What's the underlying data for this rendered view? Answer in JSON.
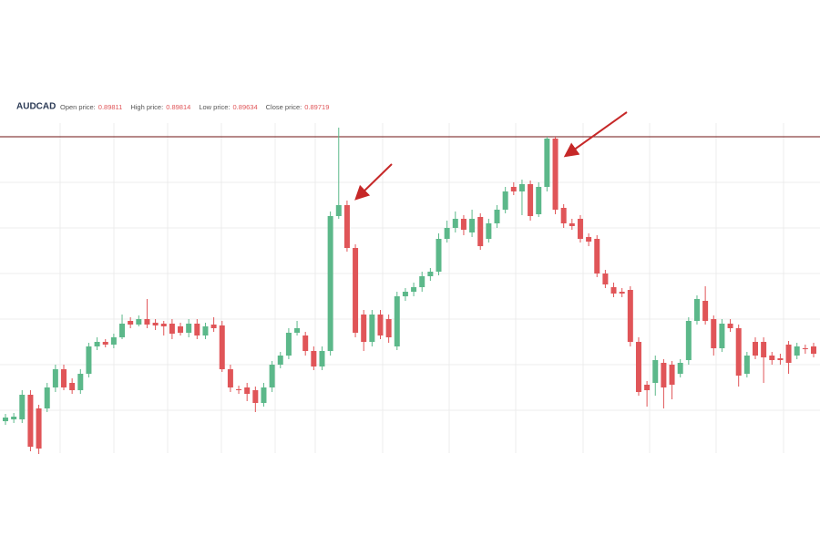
{
  "chart_data": {
    "type": "candlestick",
    "title": "AUDCAD",
    "info": [
      {
        "label": "Open price:",
        "value": 0.89811
      },
      {
        "label": "High price:",
        "value": 0.89814
      },
      {
        "label": "Low price:",
        "value": 0.89634
      },
      {
        "label": "Close price:",
        "value": 0.89719
      }
    ],
    "ylim": [
      0.892,
      0.9
    ],
    "ygrid": [
      0.893,
      0.894,
      0.895,
      0.896,
      0.897,
      0.898
    ],
    "hline": 0.899,
    "hline_color": "#8a4040",
    "up_color": "#5cb88a",
    "down_color": "#e05558",
    "open": [
      0.89276,
      0.8928,
      0.8928,
      0.89334,
      0.89304,
      0.89304,
      0.8935,
      0.8939,
      0.8936,
      0.89344,
      0.8938,
      0.8944,
      0.8945,
      0.89444,
      0.8946,
      0.89496,
      0.89488,
      0.895,
      0.89492,
      0.8949,
      0.8949,
      0.89484,
      0.8947,
      0.8949,
      0.89464,
      0.89488,
      0.89486,
      0.8939,
      0.89346,
      0.8935,
      0.89344,
      0.89316,
      0.8935,
      0.894,
      0.8942,
      0.8947,
      0.89464,
      0.8943,
      0.89396,
      0.8943,
      0.89726,
      0.8975,
      0.89656,
      0.8951,
      0.8945,
      0.8951,
      0.895,
      0.8944,
      0.8955,
      0.8956,
      0.8957,
      0.89594,
      0.89604,
      0.89676,
      0.897,
      0.8972,
      0.8969,
      0.89724,
      0.89676,
      0.8971,
      0.8974,
      0.8979,
      0.8978,
      0.89796,
      0.8973,
      0.8979,
      0.89896,
      0.89744,
      0.8971,
      0.8972,
      0.8968,
      0.89676,
      0.896,
      0.8957,
      0.8956,
      0.89564,
      0.8945,
      0.89356,
      0.8936,
      0.89404,
      0.894,
      0.8938,
      0.8941,
      0.89496,
      0.8954,
      0.895,
      0.89436,
      0.8949,
      0.8948,
      0.8938,
      0.8945,
      0.8945,
      0.8942,
      0.89414,
      0.89444,
      0.8942,
      0.89436,
      0.8944
    ],
    "high": [
      0.89292,
      0.89294,
      0.89344,
      0.89344,
      0.89312,
      0.8936,
      0.894,
      0.894,
      0.8937,
      0.8939,
      0.89448,
      0.8946,
      0.89456,
      0.89468,
      0.8951,
      0.89504,
      0.89508,
      0.89544,
      0.895,
      0.89496,
      0.895,
      0.89492,
      0.895,
      0.895,
      0.89492,
      0.89504,
      0.89496,
      0.894,
      0.89354,
      0.8936,
      0.89352,
      0.8936,
      0.89408,
      0.89428,
      0.8948,
      0.89496,
      0.89472,
      0.8944,
      0.8944,
      0.89736,
      0.8992,
      0.8976,
      0.89664,
      0.8952,
      0.8952,
      0.8952,
      0.8951,
      0.8956,
      0.89568,
      0.8958,
      0.89604,
      0.89612,
      0.89688,
      0.89716,
      0.89736,
      0.89728,
      0.8974,
      0.89732,
      0.8972,
      0.8975,
      0.8979,
      0.898,
      0.89806,
      0.89804,
      0.898,
      0.899,
      0.899,
      0.89752,
      0.8972,
      0.89728,
      0.89688,
      0.89684,
      0.89608,
      0.8958,
      0.89568,
      0.89572,
      0.8946,
      0.89364,
      0.8942,
      0.89412,
      0.89408,
      0.89412,
      0.89504,
      0.89552,
      0.89572,
      0.89508,
      0.895,
      0.895,
      0.89488,
      0.89428,
      0.8946,
      0.8946,
      0.89428,
      0.89424,
      0.89452,
      0.89448,
      0.89444,
      0.89448
    ],
    "low": [
      0.89268,
      0.89272,
      0.89272,
      0.8921,
      0.89204,
      0.89296,
      0.8934,
      0.89344,
      0.89336,
      0.89336,
      0.89372,
      0.89432,
      0.89438,
      0.89436,
      0.89456,
      0.8948,
      0.89484,
      0.8948,
      0.89476,
      0.89464,
      0.89456,
      0.89464,
      0.8946,
      0.89456,
      0.89456,
      0.89472,
      0.89384,
      0.8934,
      0.89336,
      0.8932,
      0.89296,
      0.89308,
      0.8934,
      0.89392,
      0.89412,
      0.89464,
      0.8942,
      0.89388,
      0.89388,
      0.8942,
      0.8972,
      0.89648,
      0.8946,
      0.8943,
      0.8944,
      0.89456,
      0.89448,
      0.89432,
      0.8954,
      0.8955,
      0.8956,
      0.89584,
      0.89596,
      0.89668,
      0.8969,
      0.89684,
      0.8968,
      0.89652,
      0.89668,
      0.897,
      0.89732,
      0.89772,
      0.89728,
      0.89716,
      0.89724,
      0.8978,
      0.8973,
      0.897,
      0.89696,
      0.89668,
      0.8966,
      0.89592,
      0.89568,
      0.89548,
      0.89548,
      0.8944,
      0.89332,
      0.89308,
      0.89332,
      0.89304,
      0.89324,
      0.89372,
      0.894,
      0.89488,
      0.89488,
      0.8942,
      0.89428,
      0.89472,
      0.89352,
      0.89372,
      0.89412,
      0.8936,
      0.894,
      0.894,
      0.8938,
      0.89412,
      0.89424,
      0.89416
    ],
    "close": [
      0.89284,
      0.89286,
      0.89334,
      0.8922,
      0.89216,
      0.8935,
      0.8939,
      0.8935,
      0.89344,
      0.8938,
      0.8944,
      0.8945,
      0.89444,
      0.8946,
      0.8949,
      0.89488,
      0.895,
      0.89488,
      0.89486,
      0.89484,
      0.89468,
      0.8947,
      0.8949,
      0.89464,
      0.89484,
      0.8948,
      0.8939,
      0.8935,
      0.89344,
      0.89336,
      0.89316,
      0.8935,
      0.894,
      0.8942,
      0.8947,
      0.8948,
      0.8943,
      0.89396,
      0.8943,
      0.89726,
      0.8975,
      0.89656,
      0.8947,
      0.8945,
      0.8951,
      0.89464,
      0.8946,
      0.8955,
      0.8956,
      0.8957,
      0.89594,
      0.89604,
      0.89676,
      0.897,
      0.8972,
      0.89696,
      0.8972,
      0.8966,
      0.8971,
      0.8974,
      0.8978,
      0.8978,
      0.89796,
      0.89726,
      0.8979,
      0.89896,
      0.8974,
      0.8971,
      0.89704,
      0.89676,
      0.8967,
      0.896,
      0.89576,
      0.89556,
      0.89556,
      0.8945,
      0.8934,
      0.89344,
      0.8941,
      0.8935,
      0.89356,
      0.89404,
      0.89496,
      0.89544,
      0.89496,
      0.89436,
      0.8949,
      0.8948,
      0.89376,
      0.8942,
      0.8942,
      0.89416,
      0.8941,
      0.8941,
      0.89404,
      0.8944,
      0.89434,
      0.89424
    ]
  }
}
